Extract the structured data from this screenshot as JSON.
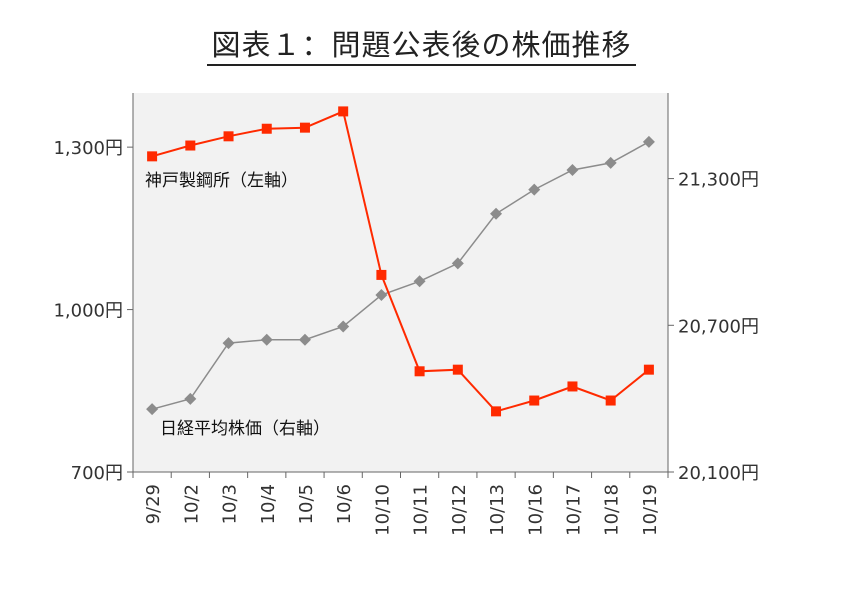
{
  "title": "図表１：問題公表後の株価推移",
  "chart_data": {
    "type": "line",
    "categories": [
      "9/29",
      "10/2",
      "10/3",
      "10/4",
      "10/5",
      "10/6",
      "10/10",
      "10/11",
      "10/12",
      "10/13",
      "10/16",
      "10/17",
      "10/18",
      "10/19"
    ],
    "series": [
      {
        "name": "神戸製鋼所（左軸）",
        "axis": "left",
        "color": "#ff2a00",
        "marker": "square",
        "values": [
          1283,
          1303,
          1320,
          1334,
          1336,
          1366,
          1064,
          886,
          889,
          812,
          832,
          858,
          832,
          889
        ]
      },
      {
        "name": "日経平均株価（右軸）",
        "axis": "right",
        "color": "#8c8c8c",
        "marker": "diamond",
        "values": [
          20357,
          20399,
          20627,
          20641,
          20641,
          20695,
          20824,
          20880,
          20953,
          21156,
          21255,
          21335,
          21364,
          21450
        ]
      }
    ],
    "left_axis": {
      "ylim": [
        700,
        1400
      ],
      "ticks": [
        700,
        1000,
        1300
      ],
      "tick_labels": [
        "700円",
        "1,000円",
        "1,300円"
      ]
    },
    "right_axis": {
      "ylim": [
        20100,
        21650
      ],
      "ticks": [
        20100,
        20700,
        21300
      ],
      "tick_labels": [
        "20,100円",
        "20,700円",
        "21,300円"
      ]
    },
    "plot_background": "#f2f2f2",
    "grid": false
  }
}
